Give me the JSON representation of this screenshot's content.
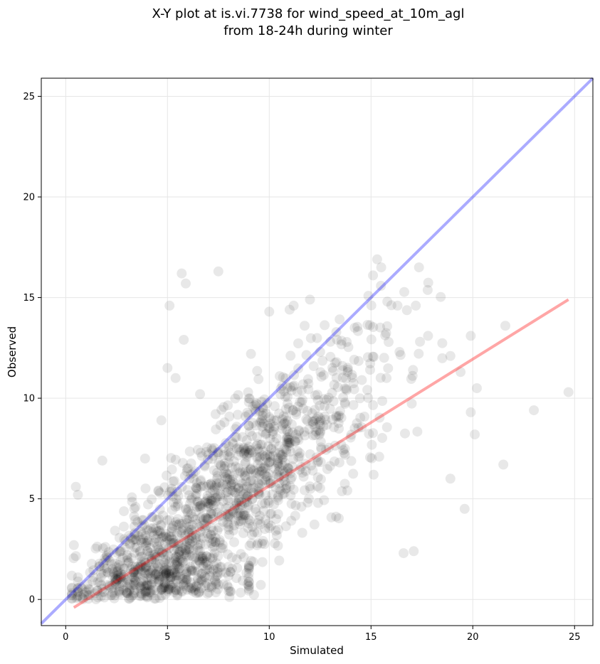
{
  "chart_data": {
    "type": "scatter",
    "title_line1": "X-Y plot at is.vi.7738 for wind_speed_at_10m_agl",
    "title_line2": "from 18-24h during winter",
    "xlabel": "Simulated",
    "ylabel": "Observed",
    "xlim": [
      -1.2,
      25.9
    ],
    "ylim": [
      -1.3,
      25.9
    ],
    "x_ticks": [
      0,
      5,
      10,
      15,
      20,
      25
    ],
    "y_ticks": [
      0,
      5,
      10,
      15,
      20,
      25
    ],
    "grid": true,
    "one_to_one_line": {
      "x": [
        -1.2,
        25.9
      ],
      "y": [
        -1.2,
        25.9
      ],
      "color": "#0000ff"
    },
    "fit_line": {
      "x": [
        0.4,
        24.7
      ],
      "y": [
        -0.4,
        14.9
      ],
      "color": "#ff0000"
    },
    "points_color": "#000000",
    "outliers": {
      "x": [
        5.7,
        5.9,
        7.5,
        5.1,
        5.8,
        10.0,
        11.0,
        11.2,
        12.0,
        9.1,
        5.0,
        5.4,
        15.1,
        15.3,
        15.5,
        15.8,
        16.3,
        17.2,
        18.9,
        19.4,
        19.9,
        20.2,
        21.6,
        21.5,
        23.0,
        24.7,
        19.6,
        19.9,
        20.1,
        18.9,
        17.8,
        16.4,
        16.6,
        17.1,
        4.7,
        3.9,
        0.5,
        0.6,
        1.8,
        0.4,
        1.1,
        1.9,
        2.4,
        3.7,
        4.0,
        6.6,
        7.8,
        9.0,
        12.5,
        13.0,
        14.2
      ],
      "y": [
        16.2,
        15.7,
        16.3,
        14.6,
        12.9,
        14.3,
        14.4,
        14.6,
        14.9,
        12.2,
        11.5,
        11.0,
        16.1,
        16.9,
        16.5,
        14.8,
        14.6,
        14.6,
        12.1,
        11.3,
        13.1,
        10.5,
        13.6,
        6.7,
        9.4,
        10.3,
        4.5,
        9.3,
        8.2,
        6.0,
        13.1,
        12.3,
        2.3,
        2.4,
        8.9,
        7.0,
        5.6,
        5.2,
        6.9,
        2.7,
        0.2,
        0.1,
        0.2,
        0.3,
        0.1,
        10.2,
        8.8,
        9.8,
        12.3,
        12.8,
        13.5
      ]
    },
    "point_count": 1500
  }
}
